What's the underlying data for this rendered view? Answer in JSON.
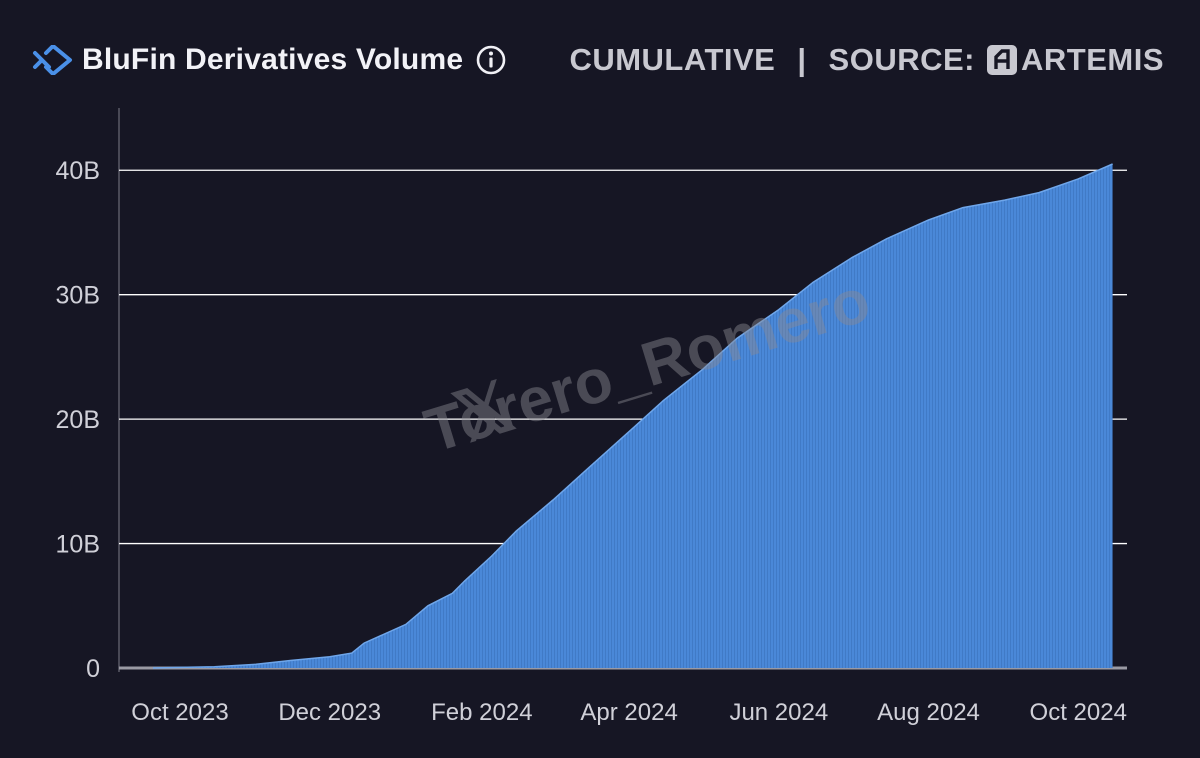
{
  "header": {
    "title": "BluFin Derivatives Volume",
    "mode": "CUMULATIVE",
    "separator": "|",
    "source_label": "SOURCE:",
    "source_name": "ARTEMIS"
  },
  "watermark": "Torero_Romero",
  "colors": {
    "background": "#161624",
    "bar": "#4a88d8",
    "bar_edge": "#6fa6ea",
    "grid": "#ffffff",
    "text": "#d8d8e0"
  },
  "chart_data": {
    "type": "area",
    "title": "BluFin Derivatives Volume",
    "subtitle": "CUMULATIVE",
    "xlabel": "",
    "ylabel": "",
    "ylim": [
      0,
      45
    ],
    "y_unit": "B",
    "yticks": [
      0,
      10,
      20,
      30,
      40
    ],
    "ytick_labels": [
      "0",
      "10B",
      "20B",
      "30B",
      "40B"
    ],
    "xtick_labels": [
      "Oct 2023",
      "Dec 2023",
      "Feb 2024",
      "Apr 2024",
      "Jun 2024",
      "Aug 2024",
      "Oct 2024"
    ],
    "xtick_dates": [
      "2023-10-01",
      "2023-12-01",
      "2024-02-01",
      "2024-04-01",
      "2024-06-01",
      "2024-08-01",
      "2024-10-01"
    ],
    "x_range": [
      "2023-09-20",
      "2024-10-20"
    ],
    "grid": true,
    "legend": "none",
    "series": [
      {
        "values_unit": "billions",
        "points": [
          [
            "2023-09-20",
            0.0
          ],
          [
            "2023-10-01",
            0.05
          ],
          [
            "2023-10-15",
            0.1
          ],
          [
            "2023-11-01",
            0.3
          ],
          [
            "2023-11-15",
            0.6
          ],
          [
            "2023-12-01",
            0.9
          ],
          [
            "2023-12-10",
            1.2
          ],
          [
            "2023-12-15",
            2.0
          ],
          [
            "2024-01-01",
            3.5
          ],
          [
            "2024-01-10",
            5.0
          ],
          [
            "2024-01-20",
            6.0
          ],
          [
            "2024-01-25",
            7.0
          ],
          [
            "2024-02-05",
            9.0
          ],
          [
            "2024-02-15",
            11.0
          ],
          [
            "2024-03-01",
            13.5
          ],
          [
            "2024-03-15",
            16.0
          ],
          [
            "2024-04-01",
            19.0
          ],
          [
            "2024-04-15",
            21.5
          ],
          [
            "2024-05-01",
            24.0
          ],
          [
            "2024-05-15",
            26.5
          ],
          [
            "2024-06-01",
            28.8
          ],
          [
            "2024-06-15",
            31.0
          ],
          [
            "2024-07-01",
            33.0
          ],
          [
            "2024-07-15",
            34.5
          ],
          [
            "2024-08-01",
            36.0
          ],
          [
            "2024-08-15",
            37.0
          ],
          [
            "2024-09-01",
            37.6
          ],
          [
            "2024-09-15",
            38.2
          ],
          [
            "2024-10-01",
            39.3
          ],
          [
            "2024-10-15",
            40.5
          ]
        ]
      }
    ]
  }
}
